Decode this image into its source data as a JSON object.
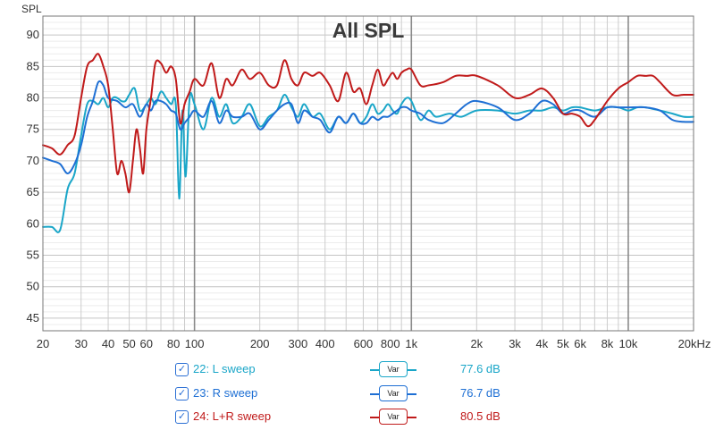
{
  "chart_data": {
    "type": "line",
    "title": "All SPL",
    "ylabel": "SPL",
    "xlabel": "",
    "x_scale": "log",
    "xlim": [
      20,
      20000
    ],
    "ylim": [
      43,
      93
    ],
    "grid": true,
    "y_ticks": [
      45,
      50,
      55,
      60,
      65,
      70,
      75,
      80,
      85,
      90
    ],
    "x_ticks": [
      {
        "v": 20,
        "l": "20"
      },
      {
        "v": 30,
        "l": "30"
      },
      {
        "v": 40,
        "l": "40"
      },
      {
        "v": 50,
        "l": "50"
      },
      {
        "v": 60,
        "l": "60"
      },
      {
        "v": 80,
        "l": "80"
      },
      {
        "v": 100,
        "l": "100"
      },
      {
        "v": 200,
        "l": "200"
      },
      {
        "v": 300,
        "l": "300"
      },
      {
        "v": 400,
        "l": "400"
      },
      {
        "v": 600,
        "l": "600"
      },
      {
        "v": 800,
        "l": "800"
      },
      {
        "v": 1000,
        "l": "1k"
      },
      {
        "v": 2000,
        "l": "2k"
      },
      {
        "v": 3000,
        "l": "3k"
      },
      {
        "v": 4000,
        "l": "4k"
      },
      {
        "v": 5000,
        "l": "5k"
      },
      {
        "v": 6000,
        "l": "6k"
      },
      {
        "v": 8000,
        "l": "8k"
      },
      {
        "v": 10000,
        "l": "10k"
      },
      {
        "v": 20000,
        "l": "20kHz"
      }
    ],
    "series": [
      {
        "name": "22: L sweep",
        "color": "#1aa6c8",
        "points": [
          [
            20,
            59.5
          ],
          [
            22,
            59.5
          ],
          [
            24,
            59
          ],
          [
            26,
            65.5
          ],
          [
            28,
            68
          ],
          [
            30,
            74
          ],
          [
            32,
            79
          ],
          [
            34,
            79.5
          ],
          [
            36,
            79
          ],
          [
            38,
            80
          ],
          [
            40,
            78.5
          ],
          [
            42,
            80
          ],
          [
            44,
            80
          ],
          [
            46,
            79.5
          ],
          [
            48,
            79.5
          ],
          [
            50,
            80.5
          ],
          [
            53,
            81.5
          ],
          [
            56,
            78
          ],
          [
            60,
            79
          ],
          [
            63,
            80
          ],
          [
            66,
            79
          ],
          [
            70,
            81
          ],
          [
            74,
            80
          ],
          [
            78,
            79
          ],
          [
            82,
            79
          ],
          [
            85,
            64
          ],
          [
            88,
            78
          ],
          [
            91,
            67.5
          ],
          [
            95,
            80
          ],
          [
            100,
            79
          ],
          [
            110,
            75
          ],
          [
            120,
            80
          ],
          [
            130,
            77
          ],
          [
            140,
            79
          ],
          [
            150,
            76
          ],
          [
            165,
            77
          ],
          [
            180,
            79
          ],
          [
            200,
            75.5
          ],
          [
            220,
            77
          ],
          [
            240,
            78
          ],
          [
            260,
            80.5
          ],
          [
            280,
            78.5
          ],
          [
            300,
            77
          ],
          [
            320,
            79
          ],
          [
            350,
            77
          ],
          [
            380,
            77.5
          ],
          [
            420,
            75
          ],
          [
            460,
            77
          ],
          [
            500,
            76
          ],
          [
            540,
            77.5
          ],
          [
            580,
            76
          ],
          [
            620,
            77
          ],
          [
            660,
            79
          ],
          [
            700,
            77.5
          ],
          [
            740,
            78
          ],
          [
            780,
            79
          ],
          [
            820,
            78
          ],
          [
            860,
            77.5
          ],
          [
            900,
            79
          ],
          [
            950,
            80
          ],
          [
            1000,
            79.5
          ],
          [
            1100,
            76.5
          ],
          [
            1200,
            78
          ],
          [
            1300,
            77
          ],
          [
            1500,
            77.5
          ],
          [
            1700,
            77
          ],
          [
            2000,
            78
          ],
          [
            2500,
            78
          ],
          [
            3000,
            77.5
          ],
          [
            3500,
            78
          ],
          [
            4000,
            78
          ],
          [
            4500,
            78.5
          ],
          [
            5000,
            78
          ],
          [
            5500,
            78.5
          ],
          [
            6000,
            78.5
          ],
          [
            7000,
            78
          ],
          [
            8000,
            78.5
          ],
          [
            9000,
            78.5
          ],
          [
            10000,
            78
          ],
          [
            11000,
            78.5
          ],
          [
            12000,
            78.5
          ],
          [
            14000,
            78
          ],
          [
            16000,
            77.5
          ],
          [
            18000,
            77
          ],
          [
            20000,
            77
          ]
        ]
      },
      {
        "name": "23: R sweep",
        "color": "#1e6fd4",
        "points": [
          [
            20,
            70.5
          ],
          [
            22,
            70
          ],
          [
            24,
            69.5
          ],
          [
            26,
            68
          ],
          [
            28,
            69.5
          ],
          [
            30,
            72.5
          ],
          [
            32,
            77
          ],
          [
            34,
            79.5
          ],
          [
            36,
            82.5
          ],
          [
            38,
            82
          ],
          [
            40,
            80
          ],
          [
            44,
            79.5
          ],
          [
            48,
            78.5
          ],
          [
            52,
            79
          ],
          [
            56,
            77
          ],
          [
            60,
            79
          ],
          [
            63,
            78
          ],
          [
            66,
            79.5
          ],
          [
            70,
            79.5
          ],
          [
            74,
            79
          ],
          [
            78,
            78
          ],
          [
            82,
            77.5
          ],
          [
            86,
            75
          ],
          [
            90,
            76
          ],
          [
            95,
            77
          ],
          [
            100,
            78
          ],
          [
            110,
            77
          ],
          [
            120,
            79.5
          ],
          [
            130,
            76
          ],
          [
            140,
            78
          ],
          [
            150,
            77
          ],
          [
            165,
            77
          ],
          [
            180,
            77.5
          ],
          [
            200,
            75
          ],
          [
            220,
            76.5
          ],
          [
            240,
            78
          ],
          [
            260,
            79
          ],
          [
            280,
            79
          ],
          [
            300,
            76
          ],
          [
            320,
            78
          ],
          [
            350,
            77
          ],
          [
            380,
            76.5
          ],
          [
            420,
            74.5
          ],
          [
            460,
            77
          ],
          [
            500,
            76
          ],
          [
            540,
            77.5
          ],
          [
            580,
            76
          ],
          [
            620,
            76
          ],
          [
            660,
            77
          ],
          [
            700,
            76.5
          ],
          [
            740,
            77
          ],
          [
            780,
            77
          ],
          [
            820,
            77.5
          ],
          [
            860,
            78
          ],
          [
            900,
            78.5
          ],
          [
            950,
            78.5
          ],
          [
            1000,
            78
          ],
          [
            1100,
            77.5
          ],
          [
            1200,
            76.5
          ],
          [
            1400,
            76
          ],
          [
            1600,
            77.5
          ],
          [
            1800,
            79
          ],
          [
            2000,
            79.5
          ],
          [
            2500,
            78.5
          ],
          [
            3000,
            76.5
          ],
          [
            3500,
            77.5
          ],
          [
            4000,
            79.5
          ],
          [
            4500,
            79
          ],
          [
            5000,
            77.5
          ],
          [
            5500,
            78
          ],
          [
            6000,
            78
          ],
          [
            7000,
            77
          ],
          [
            8000,
            78.5
          ],
          [
            9000,
            78.5
          ],
          [
            10000,
            78.5
          ],
          [
            12000,
            78.5
          ],
          [
            14000,
            78
          ],
          [
            16000,
            76.5
          ],
          [
            18000,
            76.2
          ],
          [
            20000,
            76.2
          ]
        ]
      },
      {
        "name": "24: L+R sweep",
        "color": "#c01a1a",
        "points": [
          [
            20,
            72.5
          ],
          [
            22,
            72
          ],
          [
            24,
            71
          ],
          [
            26,
            72.5
          ],
          [
            28,
            74
          ],
          [
            30,
            80
          ],
          [
            32,
            85
          ],
          [
            34,
            86
          ],
          [
            36,
            87
          ],
          [
            38,
            85
          ],
          [
            40,
            82
          ],
          [
            42,
            75
          ],
          [
            44,
            68
          ],
          [
            46,
            70
          ],
          [
            48,
            68
          ],
          [
            50,
            65
          ],
          [
            52,
            70
          ],
          [
            54,
            75
          ],
          [
            56,
            72
          ],
          [
            58,
            68
          ],
          [
            60,
            75
          ],
          [
            63,
            80
          ],
          [
            66,
            85.5
          ],
          [
            70,
            85.5
          ],
          [
            74,
            84
          ],
          [
            78,
            85
          ],
          [
            82,
            83
          ],
          [
            86,
            76
          ],
          [
            90,
            79
          ],
          [
            95,
            81
          ],
          [
            100,
            83
          ],
          [
            110,
            82
          ],
          [
            120,
            85.5
          ],
          [
            130,
            80
          ],
          [
            140,
            83
          ],
          [
            150,
            82
          ],
          [
            165,
            84.5
          ],
          [
            180,
            83
          ],
          [
            200,
            84
          ],
          [
            220,
            82
          ],
          [
            240,
            82
          ],
          [
            260,
            86
          ],
          [
            280,
            83
          ],
          [
            300,
            82
          ],
          [
            320,
            84
          ],
          [
            350,
            83.5
          ],
          [
            380,
            84
          ],
          [
            420,
            82
          ],
          [
            460,
            79.5
          ],
          [
            500,
            84
          ],
          [
            540,
            81
          ],
          [
            580,
            81.5
          ],
          [
            620,
            79
          ],
          [
            660,
            82
          ],
          [
            700,
            84.5
          ],
          [
            740,
            82
          ],
          [
            780,
            83
          ],
          [
            820,
            84
          ],
          [
            860,
            83
          ],
          [
            900,
            84
          ],
          [
            950,
            84.5
          ],
          [
            1000,
            84.5
          ],
          [
            1100,
            82
          ],
          [
            1200,
            82
          ],
          [
            1400,
            82.5
          ],
          [
            1600,
            83.5
          ],
          [
            1800,
            83.5
          ],
          [
            2000,
            83.5
          ],
          [
            2500,
            82
          ],
          [
            3000,
            80
          ],
          [
            3500,
            80.5
          ],
          [
            4000,
            81.5
          ],
          [
            4500,
            80
          ],
          [
            5000,
            77.5
          ],
          [
            5500,
            77.5
          ],
          [
            6000,
            77
          ],
          [
            6500,
            75.5
          ],
          [
            7000,
            76.5
          ],
          [
            8000,
            79.5
          ],
          [
            9000,
            81.5
          ],
          [
            10000,
            82.5
          ],
          [
            11000,
            83.5
          ],
          [
            12000,
            83.5
          ],
          [
            13000,
            83.5
          ],
          [
            14000,
            82.5
          ],
          [
            16000,
            80.5
          ],
          [
            18000,
            80.5
          ],
          [
            20000,
            80.5
          ]
        ]
      }
    ]
  },
  "legend": [
    {
      "label": "22: L sweep",
      "value": "77.6 dB",
      "var": "Var",
      "color": "#1aa6c8"
    },
    {
      "label": "23: R sweep",
      "value": "76.7 dB",
      "var": "Var",
      "color": "#1e6fd4"
    },
    {
      "label": "24: L+R sweep",
      "value": "80.5 dB",
      "var": "Var",
      "color": "#c01a1a"
    }
  ]
}
